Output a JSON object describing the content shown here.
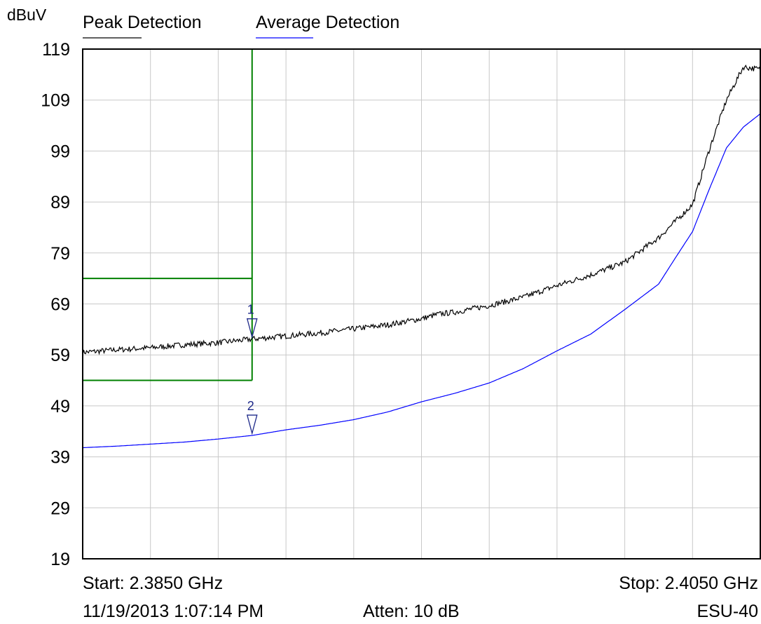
{
  "chart_data": {
    "type": "line",
    "ylabel": "dBuV",
    "ylim": [
      19,
      119
    ],
    "y_ticks": [
      "119",
      "109",
      "99",
      "89",
      "79",
      "69",
      "59",
      "49",
      "39",
      "29",
      "19"
    ],
    "xlim": [
      2.385,
      2.405
    ],
    "x_unit": "GHz",
    "grid": true,
    "legend_position": "top",
    "series": [
      {
        "name": "Peak Detection",
        "color": "#000000",
        "x": [
          2.385,
          2.386,
          2.387,
          2.388,
          2.389,
          2.39,
          2.391,
          2.392,
          2.393,
          2.394,
          2.395,
          2.3955,
          2.396,
          2.397,
          2.398,
          2.399,
          2.4,
          2.401,
          2.402,
          2.403,
          2.4035,
          2.404,
          2.4045,
          2.405
        ],
        "y": [
          59.5,
          60,
          60.4,
          61,
          61.4,
          62.1,
          62.7,
          63.3,
          64.1,
          64.9,
          66.1,
          67,
          67.4,
          68.7,
          70.3,
          72.6,
          74.7,
          77.2,
          82,
          88.5,
          99.4,
          109,
          115.5,
          115
        ]
      },
      {
        "name": "Average Detection",
        "color": "#0000ff",
        "x": [
          2.385,
          2.386,
          2.387,
          2.388,
          2.389,
          2.39,
          2.391,
          2.392,
          2.393,
          2.394,
          2.395,
          2.396,
          2.397,
          2.398,
          2.399,
          2.4,
          2.401,
          2.402,
          2.4025,
          2.403,
          2.4035,
          2.404,
          2.4045,
          2.405
        ],
        "y": [
          40.8,
          41.1,
          41.5,
          41.9,
          42.5,
          43.2,
          44.3,
          45.2,
          46.3,
          47.8,
          49.8,
          51.5,
          53.5,
          56.3,
          59.8,
          63.1,
          67.9,
          72.9,
          78.1,
          83.2,
          91.6,
          99.6,
          103.7,
          106.3
        ]
      }
    ],
    "limit_line": {
      "x_end": 2.39,
      "upper": 74,
      "lower": 54,
      "color": "#008000"
    },
    "markers": [
      {
        "label": "1",
        "series": "Peak Detection",
        "x": 2.39,
        "y": 62.1
      },
      {
        "label": "2",
        "series": "Average Detection",
        "x": 2.39,
        "y": 43.2
      }
    ],
    "footer": {
      "start": "Start: 2.3850 GHz",
      "stop": "Stop: 2.4050 GHz",
      "datetime": "11/19/2013 1:07:14 PM",
      "atten": "Atten: 10 dB",
      "instrument": "ESU-40"
    }
  }
}
